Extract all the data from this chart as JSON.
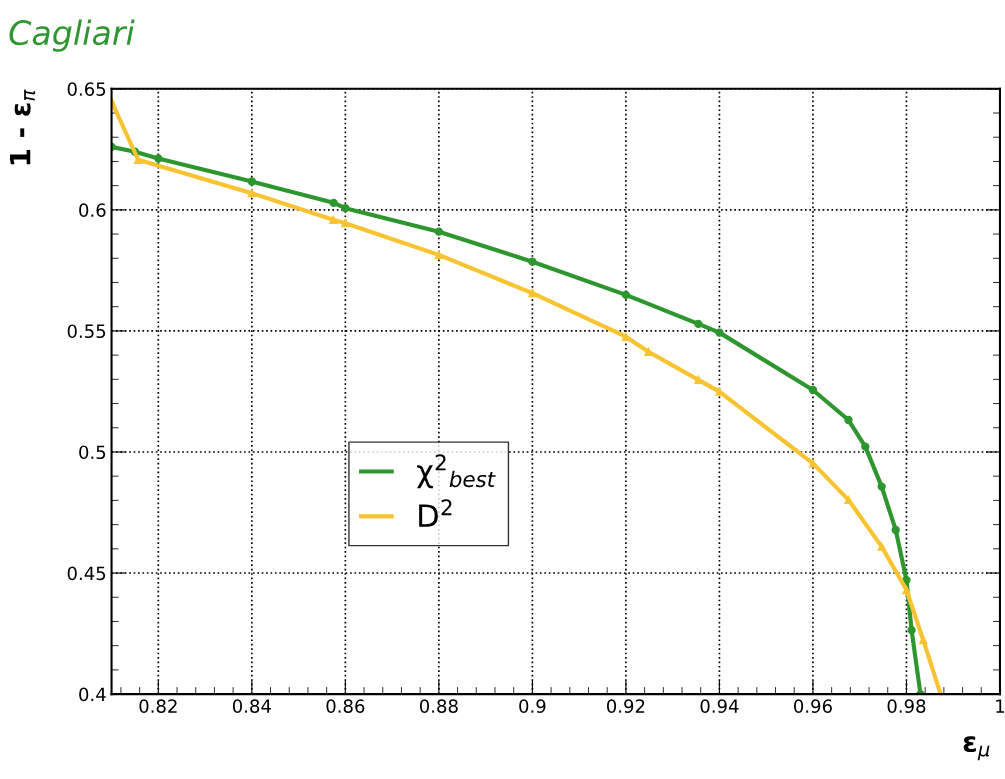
{
  "chart_data": {
    "type": "line",
    "title": "Cagliari",
    "xlabel": "ε$_{μ}$",
    "ylabel": "1 - ε$_{π}$",
    "xlim": [
      0.81,
      1.0
    ],
    "xticks": [
      0.82,
      0.84,
      0.86,
      0.88,
      0.9,
      0.92,
      0.94,
      0.96,
      0.98,
      {
        "value": 1.0,
        "label": "1"
      }
    ],
    "ylim": [
      0.4,
      0.65
    ],
    "yticks": [
      0.4,
      0.45,
      0.5,
      0.55,
      0.6,
      0.65
    ],
    "grid": true,
    "legend": "lower left",
    "series": [
      {
        "name": "χ$^{2}$$_{best}$",
        "color": "#2e962e",
        "marker": "circle",
        "x": [
          0.81,
          0.815,
          0.82,
          0.84,
          0.8575,
          0.86,
          0.88,
          0.9,
          0.92,
          0.9355,
          0.94,
          0.96,
          0.9676,
          0.9712,
          0.9747,
          0.9777,
          0.98,
          0.9811,
          0.983
        ],
        "values": [
          0.626,
          0.624,
          0.6212,
          0.6117,
          0.6029,
          0.6007,
          0.591,
          0.5786,
          0.5649,
          0.5529,
          0.5493,
          0.5256,
          0.5132,
          0.5022,
          0.4857,
          0.4678,
          0.4471,
          0.4264,
          0.4
        ]
      },
      {
        "name": "D$^{2}$",
        "color": "#f7c331",
        "marker": "triangle",
        "x": [
          0.81,
          0.8157,
          0.84,
          0.8574,
          0.86,
          0.88,
          0.9,
          0.92,
          0.9248,
          0.9355,
          0.94,
          0.96,
          0.9676,
          0.9747,
          0.98,
          0.9836,
          0.9873
        ],
        "values": [
          0.6448,
          0.6207,
          0.6069,
          0.5959,
          0.5945,
          0.5814,
          0.5656,
          0.5476,
          0.5414,
          0.5298,
          0.5249,
          0.4953,
          0.4802,
          0.4609,
          0.443,
          0.4223,
          0.4
        ]
      }
    ]
  }
}
